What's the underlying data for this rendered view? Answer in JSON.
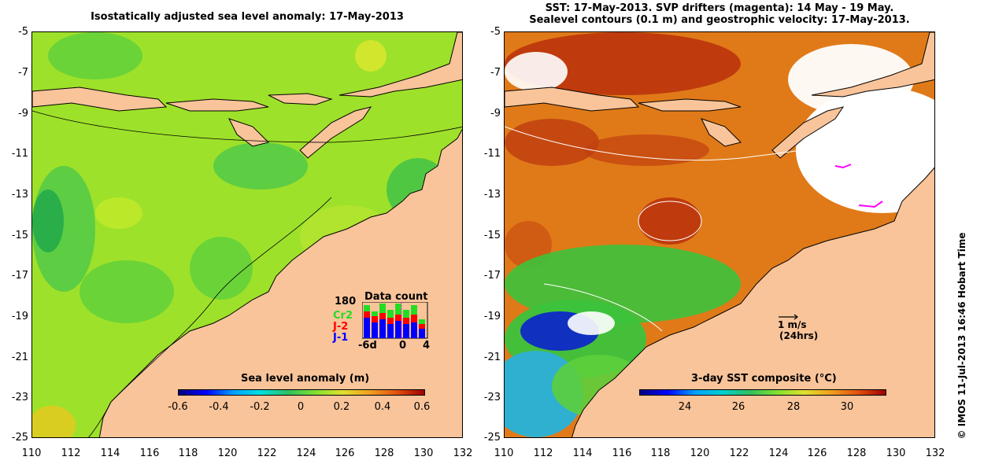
{
  "left_panel": {
    "title": "Isostatically adjusted sea level anomaly: 17-May-2013",
    "colorbar": {
      "title": "Sea level anomaly (m)",
      "ticks": [
        "-0.6",
        "-0.4",
        "-0.2",
        "0",
        "0.2",
        "0.4",
        "0.6"
      ],
      "range": [
        -0.6,
        0.6
      ]
    },
    "data_count": {
      "title": "Data count",
      "max_label": "180",
      "missions": [
        "Cr2",
        "J-2",
        "J-1"
      ],
      "mission_colors": [
        "#22dd22",
        "#ff0000",
        "#0000ff"
      ],
      "axis_ticks": [
        "-6d",
        "0",
        "4"
      ]
    }
  },
  "right_panel": {
    "title_line1": "SST: 17-May-2013. SVP drifters (magenta): 14 May - 19 May.",
    "title_line2": "Sealevel contours (0.1 m) and geostrophic velocity: 17-May-2013.",
    "colorbar": {
      "title": "3-day SST composite (°C)",
      "ticks": [
        "24",
        "26",
        "28",
        "30"
      ],
      "range": [
        22.5,
        31.5
      ]
    },
    "velocity_key": {
      "speed": "1 m/s",
      "period": "(24hrs)"
    }
  },
  "axes": {
    "latitude_ticks": [
      "-5",
      "-7",
      "-9",
      "-11",
      "-13",
      "-15",
      "-17",
      "-19",
      "-21",
      "-23",
      "-25"
    ],
    "longitude_ticks": [
      "110",
      "112",
      "114",
      "116",
      "118",
      "120",
      "122",
      "124",
      "126",
      "128",
      "130",
      "132"
    ]
  },
  "credit": "© IMOS 11-Jul-2013 16:46 Hobart Time",
  "colors": {
    "land": "#f9c49a",
    "sla_base": "#9ee12a",
    "sst_base": "#e07a18",
    "sst_warm": "#b8300c",
    "sst_cool": "#3cc23c",
    "sst_cold": "#1030c0"
  }
}
